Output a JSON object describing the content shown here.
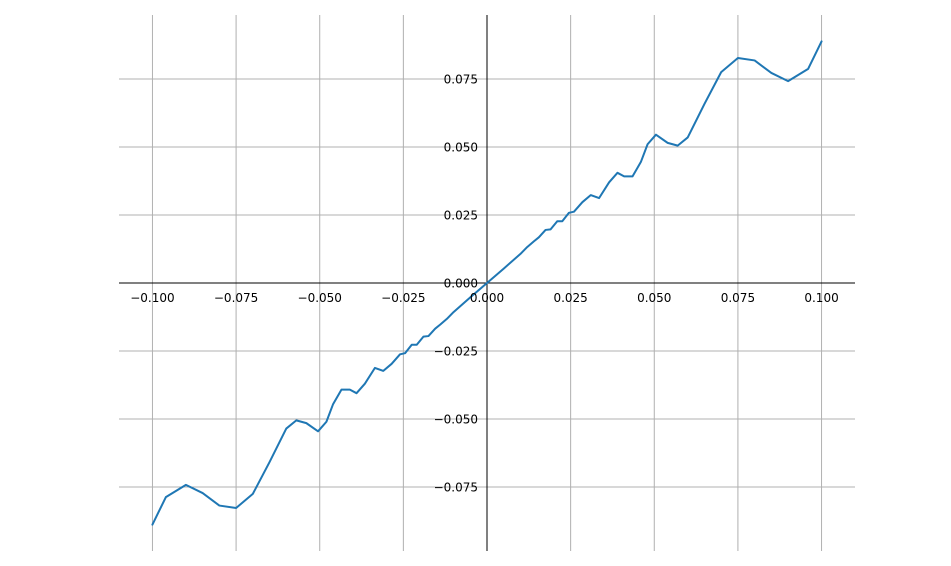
{
  "chart_data": {
    "type": "line",
    "title": "",
    "xlabel": "",
    "ylabel": "",
    "xlim": [
      -0.11,
      0.11
    ],
    "ylim": [
      -0.0985,
      0.0985
    ],
    "grid": true,
    "spines": "centered at origin",
    "x_ticks": [
      -0.1,
      -0.075,
      -0.05,
      -0.025,
      0.0,
      0.025,
      0.05,
      0.075,
      0.1
    ],
    "x_tick_labels": [
      "−0.100",
      "−0.075",
      "−0.050",
      "−0.025",
      "0.000",
      "0.025",
      "0.050",
      "0.075",
      "0.100"
    ],
    "y_ticks": [
      -0.075,
      -0.05,
      -0.025,
      0.0,
      0.025,
      0.05,
      0.075
    ],
    "y_tick_labels": [
      "−0.075",
      "−0.050",
      "−0.025",
      "0.000",
      "0.025",
      "0.050",
      "0.075"
    ],
    "series": [
      {
        "color": "#1f77b4",
        "points": [
          [
            -0.1,
            -0.0888
          ],
          [
            -0.096,
            -0.0787
          ],
          [
            -0.09,
            -0.0742
          ],
          [
            -0.085,
            -0.0772
          ],
          [
            -0.08,
            -0.0818
          ],
          [
            -0.075,
            -0.0827
          ],
          [
            -0.07,
            -0.0775
          ],
          [
            -0.065,
            -0.0658
          ],
          [
            -0.06,
            -0.0535
          ],
          [
            -0.057,
            -0.0505
          ],
          [
            -0.054,
            -0.0515
          ],
          [
            -0.0505,
            -0.0545
          ],
          [
            -0.048,
            -0.051
          ],
          [
            -0.046,
            -0.0445
          ],
          [
            -0.0435,
            -0.0392
          ],
          [
            -0.041,
            -0.0392
          ],
          [
            -0.039,
            -0.0405
          ],
          [
            -0.0365,
            -0.037
          ],
          [
            -0.0335,
            -0.0312
          ],
          [
            -0.031,
            -0.0323
          ],
          [
            -0.0285,
            -0.0297
          ],
          [
            -0.026,
            -0.0262
          ],
          [
            -0.0245,
            -0.0258
          ],
          [
            -0.0225,
            -0.0227
          ],
          [
            -0.021,
            -0.0227
          ],
          [
            -0.019,
            -0.0197
          ],
          [
            -0.0175,
            -0.0195
          ],
          [
            -0.0155,
            -0.0168
          ],
          [
            -0.014,
            -0.0153
          ],
          [
            -0.012,
            -0.0132
          ],
          [
            -0.01,
            -0.0107
          ],
          [
            -0.005,
            -0.0053
          ],
          [
            0.0,
            0.0
          ],
          [
            0.005,
            0.0053
          ],
          [
            0.01,
            0.0107
          ],
          [
            0.012,
            0.0132
          ],
          [
            0.014,
            0.0153
          ],
          [
            0.0155,
            0.0168
          ],
          [
            0.0175,
            0.0195
          ],
          [
            0.019,
            0.0197
          ],
          [
            0.021,
            0.0227
          ],
          [
            0.0225,
            0.0227
          ],
          [
            0.0245,
            0.0258
          ],
          [
            0.026,
            0.0262
          ],
          [
            0.0285,
            0.0297
          ],
          [
            0.031,
            0.0323
          ],
          [
            0.0335,
            0.0312
          ],
          [
            0.0365,
            0.037
          ],
          [
            0.039,
            0.0405
          ],
          [
            0.041,
            0.0392
          ],
          [
            0.0435,
            0.0392
          ],
          [
            0.046,
            0.0445
          ],
          [
            0.048,
            0.051
          ],
          [
            0.0505,
            0.0545
          ],
          [
            0.054,
            0.0515
          ],
          [
            0.057,
            0.0505
          ],
          [
            0.06,
            0.0535
          ],
          [
            0.065,
            0.0658
          ],
          [
            0.07,
            0.0775
          ],
          [
            0.075,
            0.0827
          ],
          [
            0.08,
            0.0818
          ],
          [
            0.085,
            0.0772
          ],
          [
            0.09,
            0.0742
          ],
          [
            0.096,
            0.0787
          ],
          [
            0.1,
            0.0888
          ]
        ]
      }
    ]
  }
}
